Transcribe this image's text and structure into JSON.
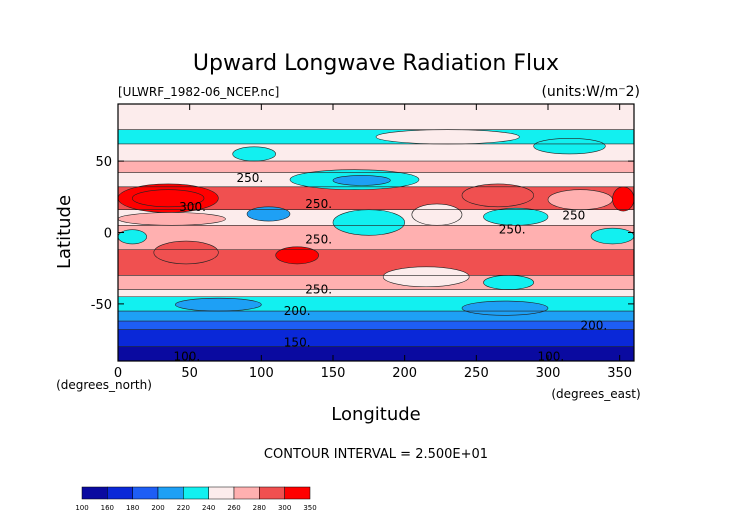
{
  "chart_data": {
    "type": "heatmap",
    "title": "Upward Longwave Radiation Flux",
    "source_label": "[ULWRF_1982-06_NCEP.nc]",
    "units_label": "(units:W/m⁻2)",
    "xlabel": "Longitude",
    "ylabel": "Latitude",
    "x_units_label": "(degrees_east)",
    "y_units_label": "(degrees_north)",
    "xlim": [
      0,
      360
    ],
    "ylim": [
      -90,
      90
    ],
    "x_ticks": [
      0,
      50,
      100,
      150,
      200,
      250,
      300,
      350
    ],
    "y_ticks": [
      -50,
      0,
      50
    ],
    "contour_interval_text": "CONTOUR INTERVAL = 2.500E+01",
    "contour_labels": [
      {
        "text": "250.",
        "lon": 92,
        "lat": 38
      },
      {
        "text": "300.",
        "lon": 52,
        "lat": 18
      },
      {
        "text": "250.",
        "lon": 140,
        "lat": 20
      },
      {
        "text": "250.",
        "lon": 140,
        "lat": -5
      },
      {
        "text": "250.",
        "lon": 275,
        "lat": 2
      },
      {
        "text": "250",
        "lon": 318,
        "lat": 12
      },
      {
        "text": "250.",
        "lon": 140,
        "lat": -40
      },
      {
        "text": "200.",
        "lon": 125,
        "lat": -55
      },
      {
        "text": "200.",
        "lon": 332,
        "lat": -65
      },
      {
        "text": "150.",
        "lon": 125,
        "lat": -77
      },
      {
        "text": "100.",
        "lon": 48,
        "lat": -87
      },
      {
        "text": "100.",
        "lon": 302,
        "lat": -87
      }
    ],
    "colorbar": {
      "levels": [
        100,
        160,
        180,
        200,
        220,
        240,
        260,
        280,
        300,
        350
      ],
      "colors": [
        "#0a0aa0",
        "#0a28d8",
        "#1e5ef5",
        "#1ea0f5",
        "#12f0f0",
        "#fcecec",
        "#ffb0b0",
        "#f05050",
        "#ff0000"
      ]
    },
    "zonal_mean_bands": [
      {
        "lat_from": 90,
        "lat_to": 72,
        "level": 240
      },
      {
        "lat_from": 72,
        "lat_to": 62,
        "level": 220
      },
      {
        "lat_from": 62,
        "lat_to": 50,
        "level": 240
      },
      {
        "lat_from": 50,
        "lat_to": 42,
        "level": 260
      },
      {
        "lat_from": 42,
        "lat_to": 32,
        "level": 240
      },
      {
        "lat_from": 32,
        "lat_to": 16,
        "level": 280
      },
      {
        "lat_from": 16,
        "lat_to": 5,
        "level": 240
      },
      {
        "lat_from": 5,
        "lat_to": -12,
        "level": 260
      },
      {
        "lat_from": -12,
        "lat_to": -30,
        "level": 280
      },
      {
        "lat_from": -30,
        "lat_to": -40,
        "level": 260
      },
      {
        "lat_from": -40,
        "lat_to": -45,
        "level": 240
      },
      {
        "lat_from": -45,
        "lat_to": -55,
        "level": 220
      },
      {
        "lat_from": -55,
        "lat_to": -62,
        "level": 200
      },
      {
        "lat_from": -62,
        "lat_to": -68,
        "level": 180
      },
      {
        "lat_from": -68,
        "lat_to": -80,
        "level": 160
      },
      {
        "lat_from": -80,
        "lat_to": -90,
        "level": 100
      }
    ],
    "anomaly_regions": [
      {
        "lon": [
          0,
          70
        ],
        "lat": [
          14,
          34
        ],
        "level": 300
      },
      {
        "lon": [
          10,
          60
        ],
        "lat": [
          18,
          30
        ],
        "level": 300
      },
      {
        "lon": [
          345,
          360
        ],
        "lat": [
          15,
          32
        ],
        "level": 300
      },
      {
        "lon": [
          0,
          75
        ],
        "lat": [
          5,
          14
        ],
        "level": 260
      },
      {
        "lon": [
          240,
          290
        ],
        "lat": [
          18,
          34
        ],
        "level": 280
      },
      {
        "lon": [
          300,
          345
        ],
        "lat": [
          16,
          30
        ],
        "level": 260
      },
      {
        "lon": [
          120,
          210
        ],
        "lat": [
          30,
          44
        ],
        "level": 220
      },
      {
        "lon": [
          150,
          190
        ],
        "lat": [
          33,
          40
        ],
        "level": 200
      },
      {
        "lon": [
          90,
          120
        ],
        "lat": [
          8,
          18
        ],
        "level": 200
      },
      {
        "lon": [
          150,
          200
        ],
        "lat": [
          -2,
          16
        ],
        "level": 220
      },
      {
        "lon": [
          205,
          240
        ],
        "lat": [
          5,
          20
        ],
        "level": 240
      },
      {
        "lon": [
          255,
          300
        ],
        "lat": [
          5,
          17
        ],
        "level": 220
      },
      {
        "lon": [
          0,
          20
        ],
        "lat": [
          -8,
          2
        ],
        "level": 220
      },
      {
        "lon": [
          330,
          360
        ],
        "lat": [
          -8,
          3
        ],
        "level": 220
      },
      {
        "lon": [
          80,
          110
        ],
        "lat": [
          50,
          60
        ],
        "level": 220
      },
      {
        "lon": [
          290,
          340
        ],
        "lat": [
          55,
          66
        ],
        "level": 220
      },
      {
        "lon": [
          180,
          280
        ],
        "lat": [
          62,
          72
        ],
        "level": 240
      },
      {
        "lon": [
          25,
          70
        ],
        "lat": [
          -22,
          -6
        ],
        "level": 280
      },
      {
        "lon": [
          110,
          140
        ],
        "lat": [
          -22,
          -10
        ],
        "level": 300
      },
      {
        "lon": [
          185,
          245
        ],
        "lat": [
          -38,
          -24
        ],
        "level": 240
      },
      {
        "lon": [
          255,
          290
        ],
        "lat": [
          -40,
          -30
        ],
        "level": 220
      },
      {
        "lon": [
          40,
          100
        ],
        "lat": [
          -55,
          -46
        ],
        "level": 200
      },
      {
        "lon": [
          240,
          300
        ],
        "lat": [
          -58,
          -48
        ],
        "level": 200
      }
    ]
  }
}
